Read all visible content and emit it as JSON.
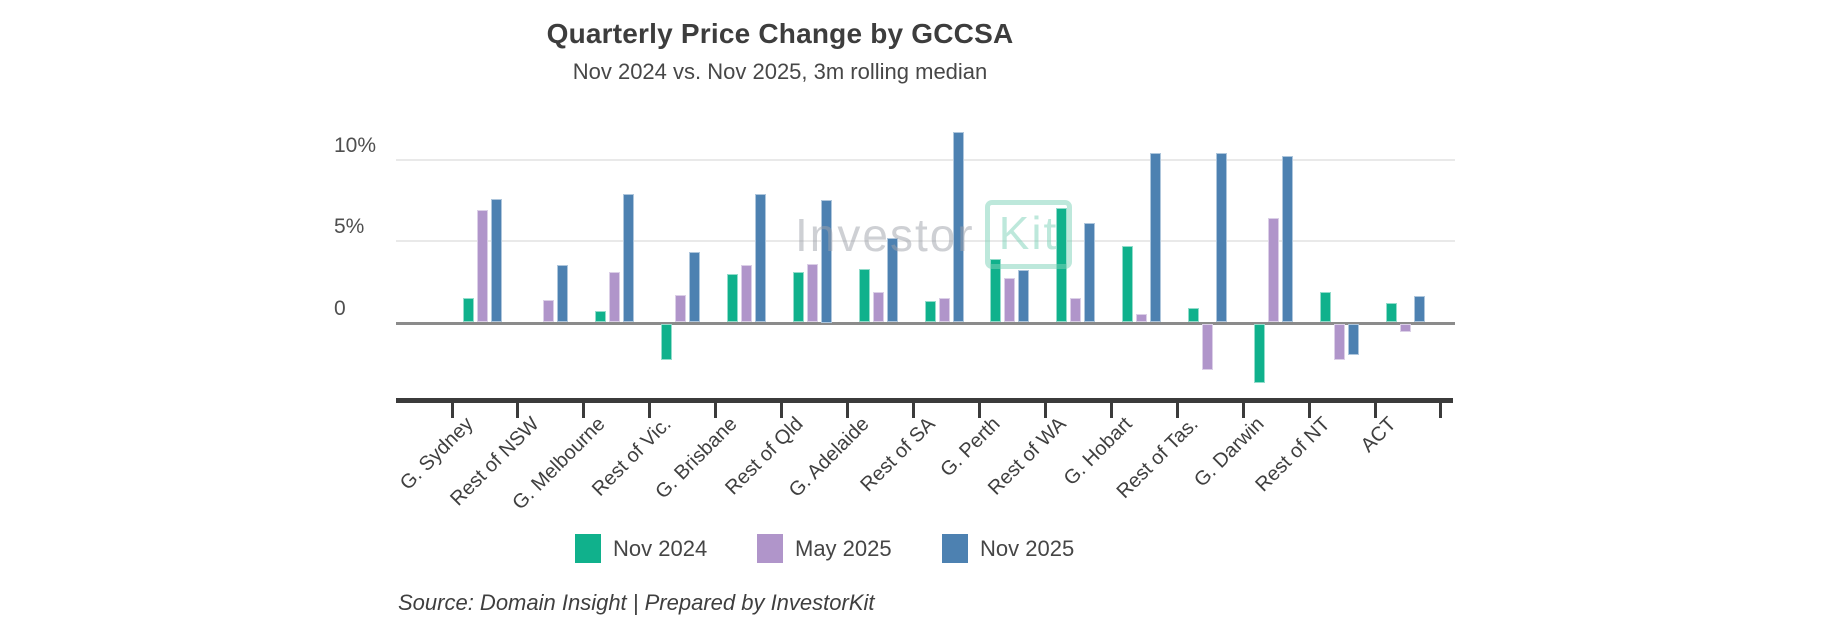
{
  "chart_data": {
    "type": "bar",
    "title": "Quarterly Price Change by GCCSA",
    "subtitle": "Nov 2024 vs. Nov 2025, 3m rolling median",
    "unit": "%",
    "categories": [
      "G. Sydney",
      "Rest of NSW",
      "G. Melbourne",
      "Rest of Vic.",
      "G. Brisbane",
      "Rest of Qld",
      "G. Adelaide",
      "Rest of SA",
      "G. Perth",
      "Rest of WA",
      "G. Hobart",
      "Rest of Tas.",
      "G. Darwin",
      "Rest of NT",
      "ACT"
    ],
    "series": [
      {
        "name": "Nov 2024",
        "color": "#10b18c",
        "values": [
          1.5,
          0,
          0.7,
          -2.2,
          3.0,
          3.1,
          3.3,
          1.3,
          3.9,
          7.0,
          4.7,
          0.9,
          -3.6,
          1.9,
          1.2
        ]
      },
      {
        "name": "May 2025",
        "color": "#b095ca",
        "values": [
          6.9,
          1.4,
          3.1,
          1.7,
          3.5,
          3.6,
          1.9,
          1.5,
          2.7,
          1.5,
          0.5,
          -2.8,
          6.4,
          -2.2,
          -0.5
        ]
      },
      {
        "name": "Nov 2025",
        "color": "#4d81b1",
        "values": [
          7.6,
          3.5,
          7.9,
          4.3,
          7.9,
          7.5,
          5.2,
          11.7,
          3.2,
          6.1,
          10.4,
          10.4,
          10.2,
          -1.9,
          1.6
        ]
      }
    ],
    "y_ticks": [
      {
        "label": "10%",
        "value": 10
      },
      {
        "label": "5%",
        "value": 5
      },
      {
        "label": "0",
        "value": 0
      }
    ],
    "ylim": [
      -4.5,
      12
    ],
    "grid": "horizontal",
    "legend_position": "bottom"
  },
  "watermark": {
    "text_left": "Investor",
    "text_right": "Kit"
  },
  "source_note": "Source: Domain Insight | Prepared by InvestorKit",
  "colors": {
    "axis_dark": "#3b3b3b",
    "zero_line": "#8b8b8b",
    "gridline": "#e9e9e9",
    "title_text": "#3d3d3d",
    "watermark_grey": "#9fa2ab",
    "watermark_teal": "#7ed3b9"
  }
}
